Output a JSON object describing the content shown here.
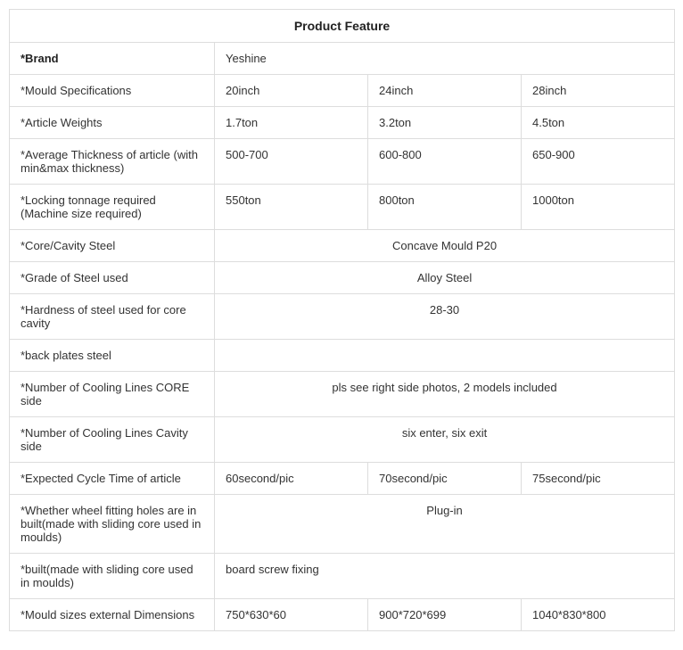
{
  "title": "Product Feature",
  "rows": {
    "brand": {
      "label": "*Brand",
      "value": "Yeshine"
    },
    "mould_spec": {
      "label": "*Mould Specifications",
      "v1": "20inch",
      "v2": "24inch",
      "v3": "28inch"
    },
    "article_weights": {
      "label": "*Article Weights",
      "v1": "1.7ton",
      "v2": "3.2ton",
      "v3": "4.5ton"
    },
    "avg_thickness": {
      "label": "*Average Thickness of article (with min&max thickness)",
      "v1": "500-700",
      "v2": "600-800",
      "v3": "650-900"
    },
    "locking_tonnage": {
      "label": "*Locking tonnage required (Machine size required)",
      "v1": "550ton",
      "v2": "800ton",
      "v3": "1000ton"
    },
    "core_cavity_steel": {
      "label": "*Core/Cavity Steel",
      "value": "Concave Mould P20"
    },
    "grade_steel": {
      "label": "*Grade of Steel used",
      "value": "Alloy Steel"
    },
    "hardness": {
      "label": "*Hardness of steel used for core cavity",
      "value": "28-30"
    },
    "back_plates": {
      "label": "*back plates steel",
      "value": ""
    },
    "cooling_core": {
      "label": "*Number of Cooling Lines CORE side",
      "value": "pls see right side photos, 2 models included"
    },
    "cooling_cavity": {
      "label": "*Number of Cooling Lines Cavity side",
      "value": "six enter, six exit"
    },
    "cycle_time": {
      "label": "*Expected Cycle Time of article",
      "v1": "60second/pic",
      "v2": "70second/pic",
      "v3": "75second/pic"
    },
    "wheel_fitting": {
      "label": "*Whether wheel fitting holes are in built(made with sliding core used in moulds)",
      "value": "Plug-in"
    },
    "built": {
      "label": "*built(made with sliding core used in moulds)",
      "value": "board screw fixing"
    },
    "mould_sizes": {
      "label": "*Mould sizes external Dimensions",
      "v1": "750*630*60",
      "v2": "900*720*699",
      "v3": "1040*830*800"
    }
  }
}
